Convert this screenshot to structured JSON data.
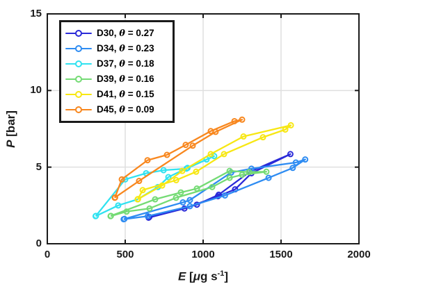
{
  "figure": {
    "background": "#ffffff"
  },
  "axes": {
    "frame_color": "#1a1a1a",
    "grid_color": "#dfdfdf",
    "tick_color": "#1a1a1a",
    "text_color": "#1a1a1a",
    "x_tick_labels": [
      "0",
      "500",
      "1000",
      "1500",
      "2000"
    ],
    "y_tick_labels": [
      "0",
      "5",
      "10",
      "15"
    ],
    "xlabel": {
      "variable": "E",
      "bracket_open": " [",
      "mu": "μ",
      "unit_mid": "g s",
      "superscript": "-1",
      "bracket_close": "]"
    },
    "ylabel": {
      "variable": "P",
      "unit": " [bar]"
    }
  },
  "legend": {
    "theta_symbol": "θ",
    "equals": " = "
  },
  "chart_data": {
    "type": "line",
    "title": "",
    "xlabel": "E [μg s^-1]",
    "ylabel": "P [bar]",
    "xlim": [
      0,
      2000
    ],
    "ylim": [
      0,
      15
    ],
    "x_ticks": [
      0,
      500,
      1000,
      1500,
      2000
    ],
    "y_ticks": [
      0,
      5,
      10,
      15
    ],
    "x_gridlines": [
      500,
      1000,
      1500
    ],
    "y_gridlines": [
      5,
      10
    ],
    "grid": true,
    "legend_position": "top-left",
    "marker": "open-circle",
    "series": [
      {
        "name": "D30",
        "theta": "0.27",
        "label": "D30, θ = 0.27",
        "color": "#2a2ad8",
        "points": [
          [
            650,
            1.7
          ],
          [
            880,
            2.3
          ],
          [
            1095,
            3.1
          ],
          [
            1205,
            3.55
          ],
          [
            1310,
            4.6
          ],
          [
            1560,
            5.85
          ],
          [
            1300,
            4.7
          ],
          [
            1100,
            3.2
          ],
          [
            960,
            2.55
          ],
          [
            655,
            1.75
          ]
        ]
      },
      {
        "name": "D34",
        "theta": "0.23",
        "label": "D34, θ = 0.23",
        "color": "#2e8cf2",
        "points": [
          [
            490,
            1.6
          ],
          [
            645,
            1.8
          ],
          [
            915,
            2.45
          ],
          [
            1140,
            3.15
          ],
          [
            1420,
            4.3
          ],
          [
            1575,
            4.95
          ],
          [
            1655,
            5.5
          ],
          [
            1595,
            5.3
          ],
          [
            1310,
            4.9
          ],
          [
            1180,
            4.65
          ],
          [
            915,
            2.85
          ],
          [
            870,
            2.7
          ],
          [
            495,
            1.62
          ]
        ]
      },
      {
        "name": "D37",
        "theta": "0.18",
        "label": "D37, θ = 0.18",
        "color": "#30e2f0",
        "points": [
          [
            310,
            1.8
          ],
          [
            455,
            2.5
          ],
          [
            580,
            2.9
          ],
          [
            710,
            3.7
          ],
          [
            777,
            4.35
          ],
          [
            900,
            4.95
          ],
          [
            1022,
            5.5
          ],
          [
            1071,
            5.72
          ],
          [
            893,
            4.9
          ],
          [
            746,
            4.8
          ],
          [
            634,
            4.6
          ],
          [
            500,
            4.2
          ],
          [
            312,
            1.82
          ]
        ]
      },
      {
        "name": "D39",
        "theta": "0.16",
        "label": "D39, θ = 0.16",
        "color": "#74db74",
        "points": [
          [
            406,
            1.8
          ],
          [
            509,
            2.1
          ],
          [
            656,
            2.3
          ],
          [
            826,
            3.0
          ],
          [
            1058,
            3.7
          ],
          [
            1170,
            4.3
          ],
          [
            1250,
            4.5
          ],
          [
            1406,
            4.7
          ],
          [
            1295,
            4.68
          ],
          [
            1170,
            4.75
          ],
          [
            960,
            3.6
          ],
          [
            857,
            3.35
          ],
          [
            692,
            2.9
          ],
          [
            408,
            1.82
          ]
        ]
      },
      {
        "name": "D41",
        "theta": "0.15",
        "label": "D41, θ = 0.15",
        "color": "#f7e713",
        "points": [
          [
            580,
            2.9
          ],
          [
            737,
            3.8
          ],
          [
            866,
            4.75
          ],
          [
            1049,
            5.85
          ],
          [
            1259,
            7.0
          ],
          [
            1563,
            7.73
          ],
          [
            1527,
            7.45
          ],
          [
            1384,
            6.95
          ],
          [
            1134,
            5.85
          ],
          [
            955,
            4.7
          ],
          [
            827,
            4.15
          ],
          [
            612,
            3.5
          ],
          [
            582,
            2.92
          ]
        ]
      },
      {
        "name": "D45",
        "theta": "0.09",
        "label": "D45, θ = 0.09",
        "color": "#f8871e",
        "points": [
          [
            433,
            3.0
          ],
          [
            478,
            4.2
          ],
          [
            643,
            5.45
          ],
          [
            768,
            5.8
          ],
          [
            888,
            6.45
          ],
          [
            1049,
            7.35
          ],
          [
            1201,
            8.0
          ],
          [
            1250,
            8.1
          ],
          [
            1080,
            7.3
          ],
          [
            933,
            6.4
          ],
          [
            589,
            4.1
          ],
          [
            435,
            3.02
          ]
        ]
      }
    ]
  }
}
